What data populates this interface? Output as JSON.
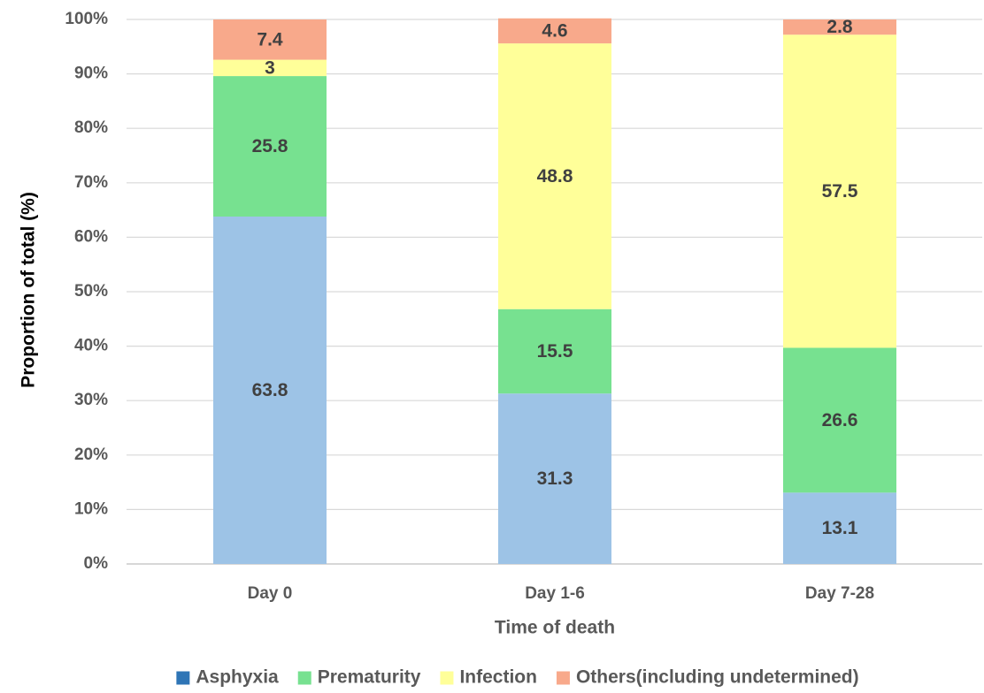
{
  "chart_data": {
    "type": "bar",
    "stacked": true,
    "categories": [
      "Day 0",
      "Day 1-6",
      "Day 7-28"
    ],
    "series": [
      {
        "name": "Asphyxia",
        "values": [
          63.8,
          31.3,
          13.1
        ],
        "color": "#9dc3e6",
        "legend_color": "#2e75b6"
      },
      {
        "name": "Prematurity",
        "values": [
          25.8,
          15.5,
          26.6
        ],
        "color": "#77e190",
        "legend_color": "#77e190"
      },
      {
        "name": "Infection",
        "values": [
          3,
          48.8,
          57.5
        ],
        "color": "#ffff99",
        "legend_color": "#ffff99"
      },
      {
        "name": "Others(including undetermined)",
        "values": [
          7.4,
          4.6,
          2.8
        ],
        "color": "#f8a98b",
        "legend_color": "#f8a98b"
      }
    ],
    "data_labels": [
      [
        "63.8",
        "31.3",
        "13.1"
      ],
      [
        "25.8",
        "15.5",
        "26.6"
      ],
      [
        "3",
        "48.8",
        "57.5"
      ],
      [
        "7.4",
        "4.6",
        "2.8"
      ]
    ],
    "xlabel": "Time of death",
    "ylabel": "Proportion of total (%)",
    "ylim": [
      0,
      100
    ],
    "yticks": [
      0,
      10,
      20,
      30,
      40,
      50,
      60,
      70,
      80,
      90,
      100
    ],
    "ytick_labels": [
      "0%",
      "10%",
      "20%",
      "30%",
      "40%",
      "50%",
      "60%",
      "70%",
      "80%",
      "90%",
      "100%"
    ],
    "grid": true,
    "legend_position": "bottom",
    "colors": {
      "grid": "#d9d9d9",
      "axis_line": "#bfbfbf",
      "text": "#595959",
      "title_text": "#000000",
      "label_text": "#404040"
    }
  }
}
